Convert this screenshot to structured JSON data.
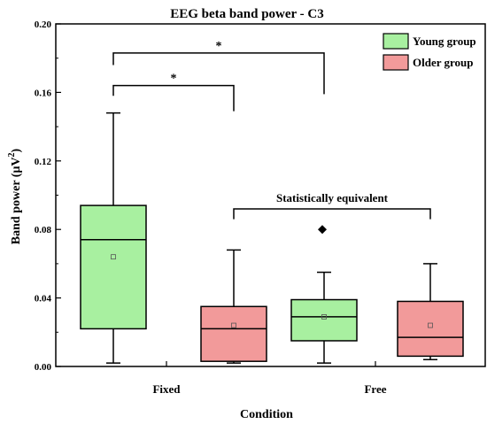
{
  "chart_data": {
    "type": "box",
    "title": "EEG beta band power - C3",
    "xlabel": "Condition",
    "ylabel": "Band power (μV²)",
    "ylabel_parts": {
      "main": "Band power (μV",
      "sup": "2",
      "end": ")"
    },
    "ylim": [
      0,
      0.2
    ],
    "yticks": [
      "0.00",
      "0.04",
      "0.08",
      "0.12",
      "0.16",
      "0.20"
    ],
    "categories": [
      "Fixed",
      "Free"
    ],
    "legend_position": "top-right",
    "series": [
      {
        "name": "Young group",
        "color": "#a8f0a0",
        "boxes": [
          {
            "category": "Fixed",
            "min": 0.002,
            "q1": 0.022,
            "median": 0.074,
            "q3": 0.094,
            "max": 0.148,
            "mean": 0.064,
            "outliers": []
          },
          {
            "category": "Free",
            "min": 0.002,
            "q1": 0.015,
            "median": 0.029,
            "q3": 0.039,
            "max": 0.055,
            "mean": 0.029,
            "outliers": [
              0.08
            ]
          }
        ]
      },
      {
        "name": "Older group",
        "color": "#f29a9a",
        "boxes": [
          {
            "category": "Fixed",
            "min": 0.002,
            "q1": 0.003,
            "median": 0.022,
            "q3": 0.035,
            "max": 0.068,
            "mean": 0.024,
            "outliers": []
          },
          {
            "category": "Free",
            "min": 0.004,
            "q1": 0.006,
            "median": 0.017,
            "q3": 0.038,
            "max": 0.06,
            "mean": 0.024,
            "outliers": []
          }
        ]
      }
    ],
    "annotations": [
      {
        "text": "*",
        "from": "Young group / Fixed",
        "to": "Older group / Fixed",
        "y": 0.164,
        "drop": 0.012
      },
      {
        "text": "*",
        "from": "Young group / Fixed",
        "to": "Young group / Free",
        "y": 0.183,
        "drop": 0.024
      },
      {
        "text": "Statistically equivalent",
        "from": "Older group / Fixed",
        "to": "Older group / Free",
        "y": 0.092,
        "drop": 0.006
      }
    ]
  }
}
